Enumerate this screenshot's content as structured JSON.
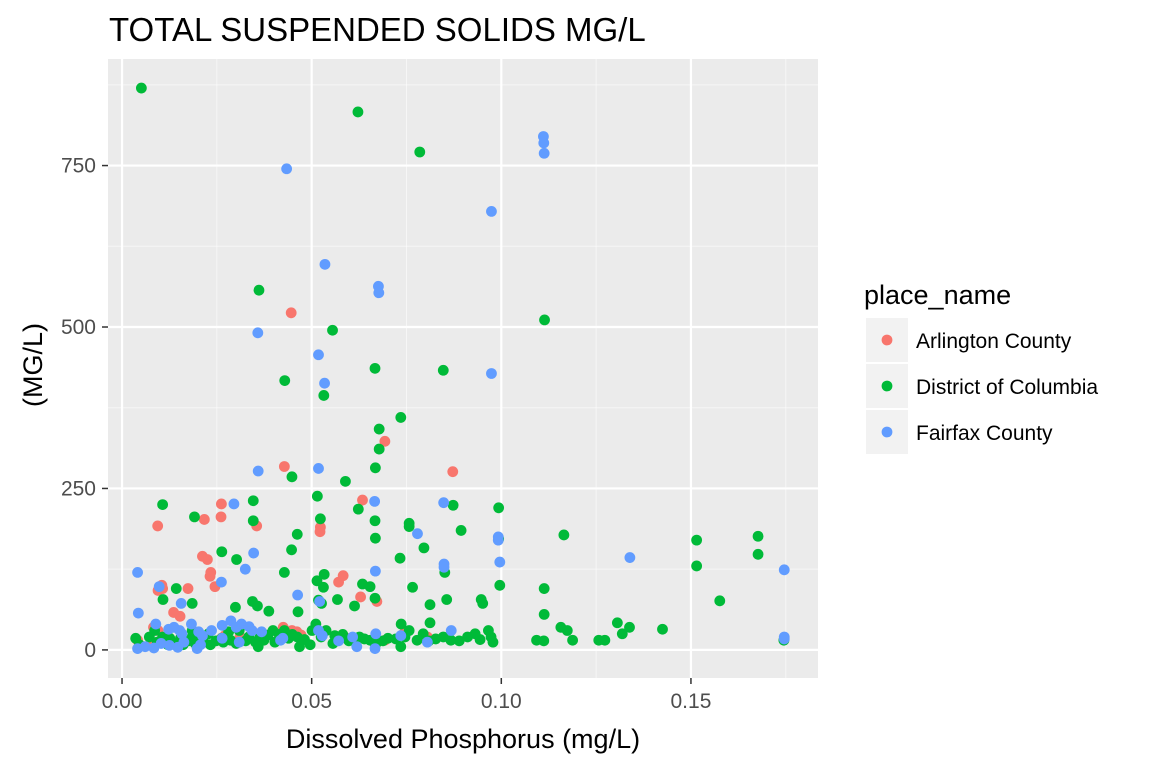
{
  "colors": {
    "panel_bg": "#EBEBEB",
    "grid_major": "#FFFFFF",
    "axis_text": "#4D4D4D",
    "tick": "#333333",
    "series": [
      "#F8766D",
      "#00BA38",
      "#619CFF"
    ]
  },
  "chart_data": {
    "type": "scatter",
    "title": "TOTAL SUSPENDED SOLIDS MG/L",
    "xlabel": "Dissolved Phosphorus (mg/L)",
    "ylabel": "(MG/L)",
    "xlim": [
      -0.0037,
      0.1835
    ],
    "ylim": [
      -43.5,
      915
    ],
    "x_ticks": [
      0.0,
      0.05,
      0.1,
      0.15
    ],
    "x_tick_labels": [
      "0.00",
      "0.05",
      "0.10",
      "0.15"
    ],
    "y_ticks": [
      0,
      250,
      500,
      750
    ],
    "y_tick_labels": [
      "0",
      "250",
      "500",
      "750"
    ],
    "grid": true,
    "legend_position": "right",
    "legend_title": "place_name",
    "series": [
      {
        "name": "Arlington County",
        "color": "#F8766D",
        "points": [
          [
            0.0094,
            192
          ],
          [
            0.0105,
            100
          ],
          [
            0.0095,
            92
          ],
          [
            0.0107,
            95
          ],
          [
            0.0083,
            35
          ],
          [
            0.0095,
            30
          ],
          [
            0.0041,
            15
          ],
          [
            0.0077,
            12
          ],
          [
            0.0136,
            58
          ],
          [
            0.0153,
            52
          ],
          [
            0.0174,
            95
          ],
          [
            0.0212,
            145
          ],
          [
            0.0225,
            140
          ],
          [
            0.0217,
            202
          ],
          [
            0.0234,
            120
          ],
          [
            0.0232,
            114
          ],
          [
            0.0245,
            98
          ],
          [
            0.0262,
            226
          ],
          [
            0.0261,
            206
          ],
          [
            0.0271,
            22
          ],
          [
            0.0262,
            18
          ],
          [
            0.0311,
            20
          ],
          [
            0.0326,
            15
          ],
          [
            0.0355,
            192
          ],
          [
            0.0425,
            35
          ],
          [
            0.0428,
            284
          ],
          [
            0.0446,
            522
          ],
          [
            0.0448,
            30
          ],
          [
            0.0461,
            28
          ],
          [
            0.0472,
            23
          ],
          [
            0.0523,
            190
          ],
          [
            0.0522,
            183
          ],
          [
            0.0571,
            105
          ],
          [
            0.0583,
            115
          ],
          [
            0.0592,
            18
          ],
          [
            0.0629,
            82
          ],
          [
            0.0634,
            232
          ],
          [
            0.0672,
            75
          ],
          [
            0.0693,
            323
          ],
          [
            0.0693,
            15
          ],
          [
            0.0742,
            25
          ],
          [
            0.0805,
            20
          ],
          [
            0.0872,
            276
          ]
        ]
      },
      {
        "name": "District of Columbia",
        "color": "#00BA38",
        "points": [
          [
            0.0051,
            870
          ],
          [
            0.0622,
            833
          ],
          [
            0.0785,
            771
          ],
          [
            0.1114,
            511
          ],
          [
            0.0361,
            557
          ],
          [
            0.0555,
            495
          ],
          [
            0.0667,
            436
          ],
          [
            0.0847,
            433
          ],
          [
            0.0429,
            417
          ],
          [
            0.0532,
            394
          ],
          [
            0.0735,
            360
          ],
          [
            0.0678,
            342
          ],
          [
            0.0678,
            311
          ],
          [
            0.0668,
            282
          ],
          [
            0.0448,
            268
          ],
          [
            0.0589,
            261
          ],
          [
            0.0515,
            238
          ],
          [
            0.0346,
            231
          ],
          [
            0.0623,
            218
          ],
          [
            0.0873,
            224
          ],
          [
            0.0993,
            220
          ],
          [
            0.0107,
            225
          ],
          [
            0.0191,
            206
          ],
          [
            0.0346,
            200
          ],
          [
            0.0523,
            203
          ],
          [
            0.0667,
            200
          ],
          [
            0.0757,
            196
          ],
          [
            0.0757,
            191
          ],
          [
            0.0894,
            185
          ],
          [
            0.1165,
            178
          ],
          [
            0.0462,
            179
          ],
          [
            0.0668,
            173
          ],
          [
            0.0993,
            172
          ],
          [
            0.1515,
            170
          ],
          [
            0.1677,
            176
          ],
          [
            0.0447,
            155
          ],
          [
            0.0263,
            152
          ],
          [
            0.0302,
            140
          ],
          [
            0.0733,
            142
          ],
          [
            0.0796,
            158
          ],
          [
            0.1677,
            148
          ],
          [
            0.0514,
            107
          ],
          [
            0.0531,
            97
          ],
          [
            0.0634,
            102
          ],
          [
            0.0428,
            120
          ],
          [
            0.0533,
            117
          ],
          [
            0.0654,
            98
          ],
          [
            0.0851,
            120
          ],
          [
            0.0996,
            100
          ],
          [
            0.1113,
            95
          ],
          [
            0.1515,
            130
          ],
          [
            0.0185,
            72
          ],
          [
            0.0299,
            66
          ],
          [
            0.0108,
            78
          ],
          [
            0.0143,
            95
          ],
          [
            0.0344,
            75
          ],
          [
            0.0357,
            68
          ],
          [
            0.0387,
            60
          ],
          [
            0.0464,
            59
          ],
          [
            0.0518,
            77
          ],
          [
            0.0526,
            72
          ],
          [
            0.0568,
            78
          ],
          [
            0.0613,
            68
          ],
          [
            0.0667,
            80
          ],
          [
            0.0766,
            97
          ],
          [
            0.0812,
            70
          ],
          [
            0.0856,
            78
          ],
          [
            0.0947,
            78
          ],
          [
            0.0951,
            72
          ],
          [
            0.1113,
            55
          ],
          [
            0.1576,
            76
          ],
          [
            0.0185,
            30
          ],
          [
            0.0086,
            30
          ],
          [
            0.0093,
            12
          ],
          [
            0.0107,
            20
          ],
          [
            0.0126,
            18
          ],
          [
            0.0134,
            10
          ],
          [
            0.0154,
            18
          ],
          [
            0.0161,
            8
          ],
          [
            0.0175,
            14
          ],
          [
            0.0185,
            20
          ],
          [
            0.0203,
            17
          ],
          [
            0.0214,
            18
          ],
          [
            0.0228,
            25
          ],
          [
            0.0248,
            14
          ],
          [
            0.0263,
            18
          ],
          [
            0.0267,
            12
          ],
          [
            0.0281,
            28
          ],
          [
            0.0301,
            10
          ],
          [
            0.0309,
            30
          ],
          [
            0.0326,
            14
          ],
          [
            0.0334,
            20
          ],
          [
            0.0352,
            12
          ],
          [
            0.0362,
            18
          ],
          [
            0.0374,
            15
          ],
          [
            0.0385,
            23
          ],
          [
            0.0398,
            30
          ],
          [
            0.0414,
            24
          ],
          [
            0.0428,
            30
          ],
          [
            0.0439,
            18
          ],
          [
            0.0449,
            24
          ],
          [
            0.0462,
            20
          ],
          [
            0.0468,
            5
          ],
          [
            0.0481,
            16
          ],
          [
            0.0501,
            30
          ],
          [
            0.0511,
            40
          ],
          [
            0.0525,
            20
          ],
          [
            0.0538,
            30
          ],
          [
            0.0556,
            10
          ],
          [
            0.0569,
            18
          ],
          [
            0.0582,
            24
          ],
          [
            0.0598,
            14
          ],
          [
            0.0611,
            15
          ],
          [
            0.0626,
            20
          ],
          [
            0.0639,
            17
          ],
          [
            0.0654,
            15
          ],
          [
            0.0672,
            12
          ],
          [
            0.0688,
            14
          ],
          [
            0.0701,
            18
          ],
          [
            0.0722,
            17
          ],
          [
            0.0736,
            40
          ],
          [
            0.0746,
            20
          ],
          [
            0.0757,
            30
          ],
          [
            0.0778,
            15
          ],
          [
            0.0794,
            25
          ],
          [
            0.0812,
            42
          ],
          [
            0.0827,
            17
          ],
          [
            0.0847,
            20
          ],
          [
            0.0867,
            15
          ],
          [
            0.0889,
            14
          ],
          [
            0.0911,
            20
          ],
          [
            0.0931,
            25
          ],
          [
            0.0966,
            30
          ],
          [
            0.0973,
            20
          ],
          [
            0.0978,
            12
          ],
          [
            0.1093,
            15
          ],
          [
            0.1112,
            14
          ],
          [
            0.1157,
            35
          ],
          [
            0.1174,
            30
          ],
          [
            0.1188,
            15
          ],
          [
            0.1257,
            15
          ],
          [
            0.1273,
            15
          ],
          [
            0.1306,
            42
          ],
          [
            0.1319,
            25
          ],
          [
            0.1338,
            35
          ],
          [
            0.1425,
            32
          ],
          [
            0.1745,
            15
          ],
          [
            0.0036,
            18
          ],
          [
            0.0046,
            8
          ],
          [
            0.0072,
            20
          ],
          [
            0.0121,
            8
          ],
          [
            0.0193,
            10
          ],
          [
            0.0233,
            8
          ],
          [
            0.0286,
            15
          ],
          [
            0.0359,
            5
          ],
          [
            0.0403,
            12
          ],
          [
            0.0496,
            8
          ],
          [
            0.0561,
            22
          ],
          [
            0.0668,
            8
          ],
          [
            0.0735,
            5
          ],
          [
            0.0809,
            14
          ],
          [
            0.0944,
            16
          ]
        ]
      },
      {
        "name": "Fairfax County",
        "color": "#619CFF",
        "points": [
          [
            0.1111,
            795
          ],
          [
            0.1112,
            785
          ],
          [
            0.1113,
            769
          ],
          [
            0.0434,
            745
          ],
          [
            0.0974,
            679
          ],
          [
            0.0535,
            597
          ],
          [
            0.0676,
            563
          ],
          [
            0.0677,
            553
          ],
          [
            0.0358,
            491
          ],
          [
            0.0518,
            457
          ],
          [
            0.0534,
            413
          ],
          [
            0.0974,
            428
          ],
          [
            0.0359,
            277
          ],
          [
            0.0518,
            281
          ],
          [
            0.0295,
            226
          ],
          [
            0.0666,
            230
          ],
          [
            0.0848,
            228
          ],
          [
            0.0779,
            180
          ],
          [
            0.0992,
            175
          ],
          [
            0.0992,
            170
          ],
          [
            0.0347,
            150
          ],
          [
            0.0849,
            133
          ],
          [
            0.0849,
            128
          ],
          [
            0.0325,
            125
          ],
          [
            0.1339,
            143
          ],
          [
            0.0041,
            120
          ],
          [
            0.0098,
            98
          ],
          [
            0.0262,
            105
          ],
          [
            0.0668,
            122
          ],
          [
            0.0996,
            136
          ],
          [
            0.0463,
            85
          ],
          [
            0.0156,
            72
          ],
          [
            0.0043,
            57
          ],
          [
            0.0521,
            75
          ],
          [
            0.0089,
            40
          ],
          [
            0.0123,
            32
          ],
          [
            0.0137,
            35
          ],
          [
            0.0152,
            30
          ],
          [
            0.0158,
            25
          ],
          [
            0.0183,
            40
          ],
          [
            0.0202,
            28
          ],
          [
            0.0212,
            22
          ],
          [
            0.0236,
            30
          ],
          [
            0.0264,
            38
          ],
          [
            0.0287,
            45
          ],
          [
            0.0301,
            35
          ],
          [
            0.0315,
            40
          ],
          [
            0.0335,
            36
          ],
          [
            0.0343,
            30
          ],
          [
            0.0368,
            28
          ],
          [
            0.0424,
            18
          ],
          [
            0.0518,
            30
          ],
          [
            0.0528,
            22
          ],
          [
            0.0608,
            20
          ],
          [
            0.0669,
            25
          ],
          [
            0.0735,
            22
          ],
          [
            0.0868,
            30
          ],
          [
            0.0041,
            2
          ],
          [
            0.0061,
            5
          ],
          [
            0.0084,
            3
          ],
          [
            0.0103,
            10
          ],
          [
            0.0125,
            7
          ],
          [
            0.0147,
            4
          ],
          [
            0.0163,
            12
          ],
          [
            0.0198,
            2
          ],
          [
            0.0207,
            8
          ],
          [
            0.0264,
            18
          ],
          [
            0.0309,
            12
          ],
          [
            0.0418,
            15
          ],
          [
            0.0571,
            14
          ],
          [
            0.0619,
            5
          ],
          [
            0.0667,
            2
          ],
          [
            0.0805,
            12
          ],
          [
            0.1746,
            20
          ],
          [
            0.1746,
            17
          ],
          [
            0.1746,
            124
          ]
        ]
      }
    ]
  }
}
